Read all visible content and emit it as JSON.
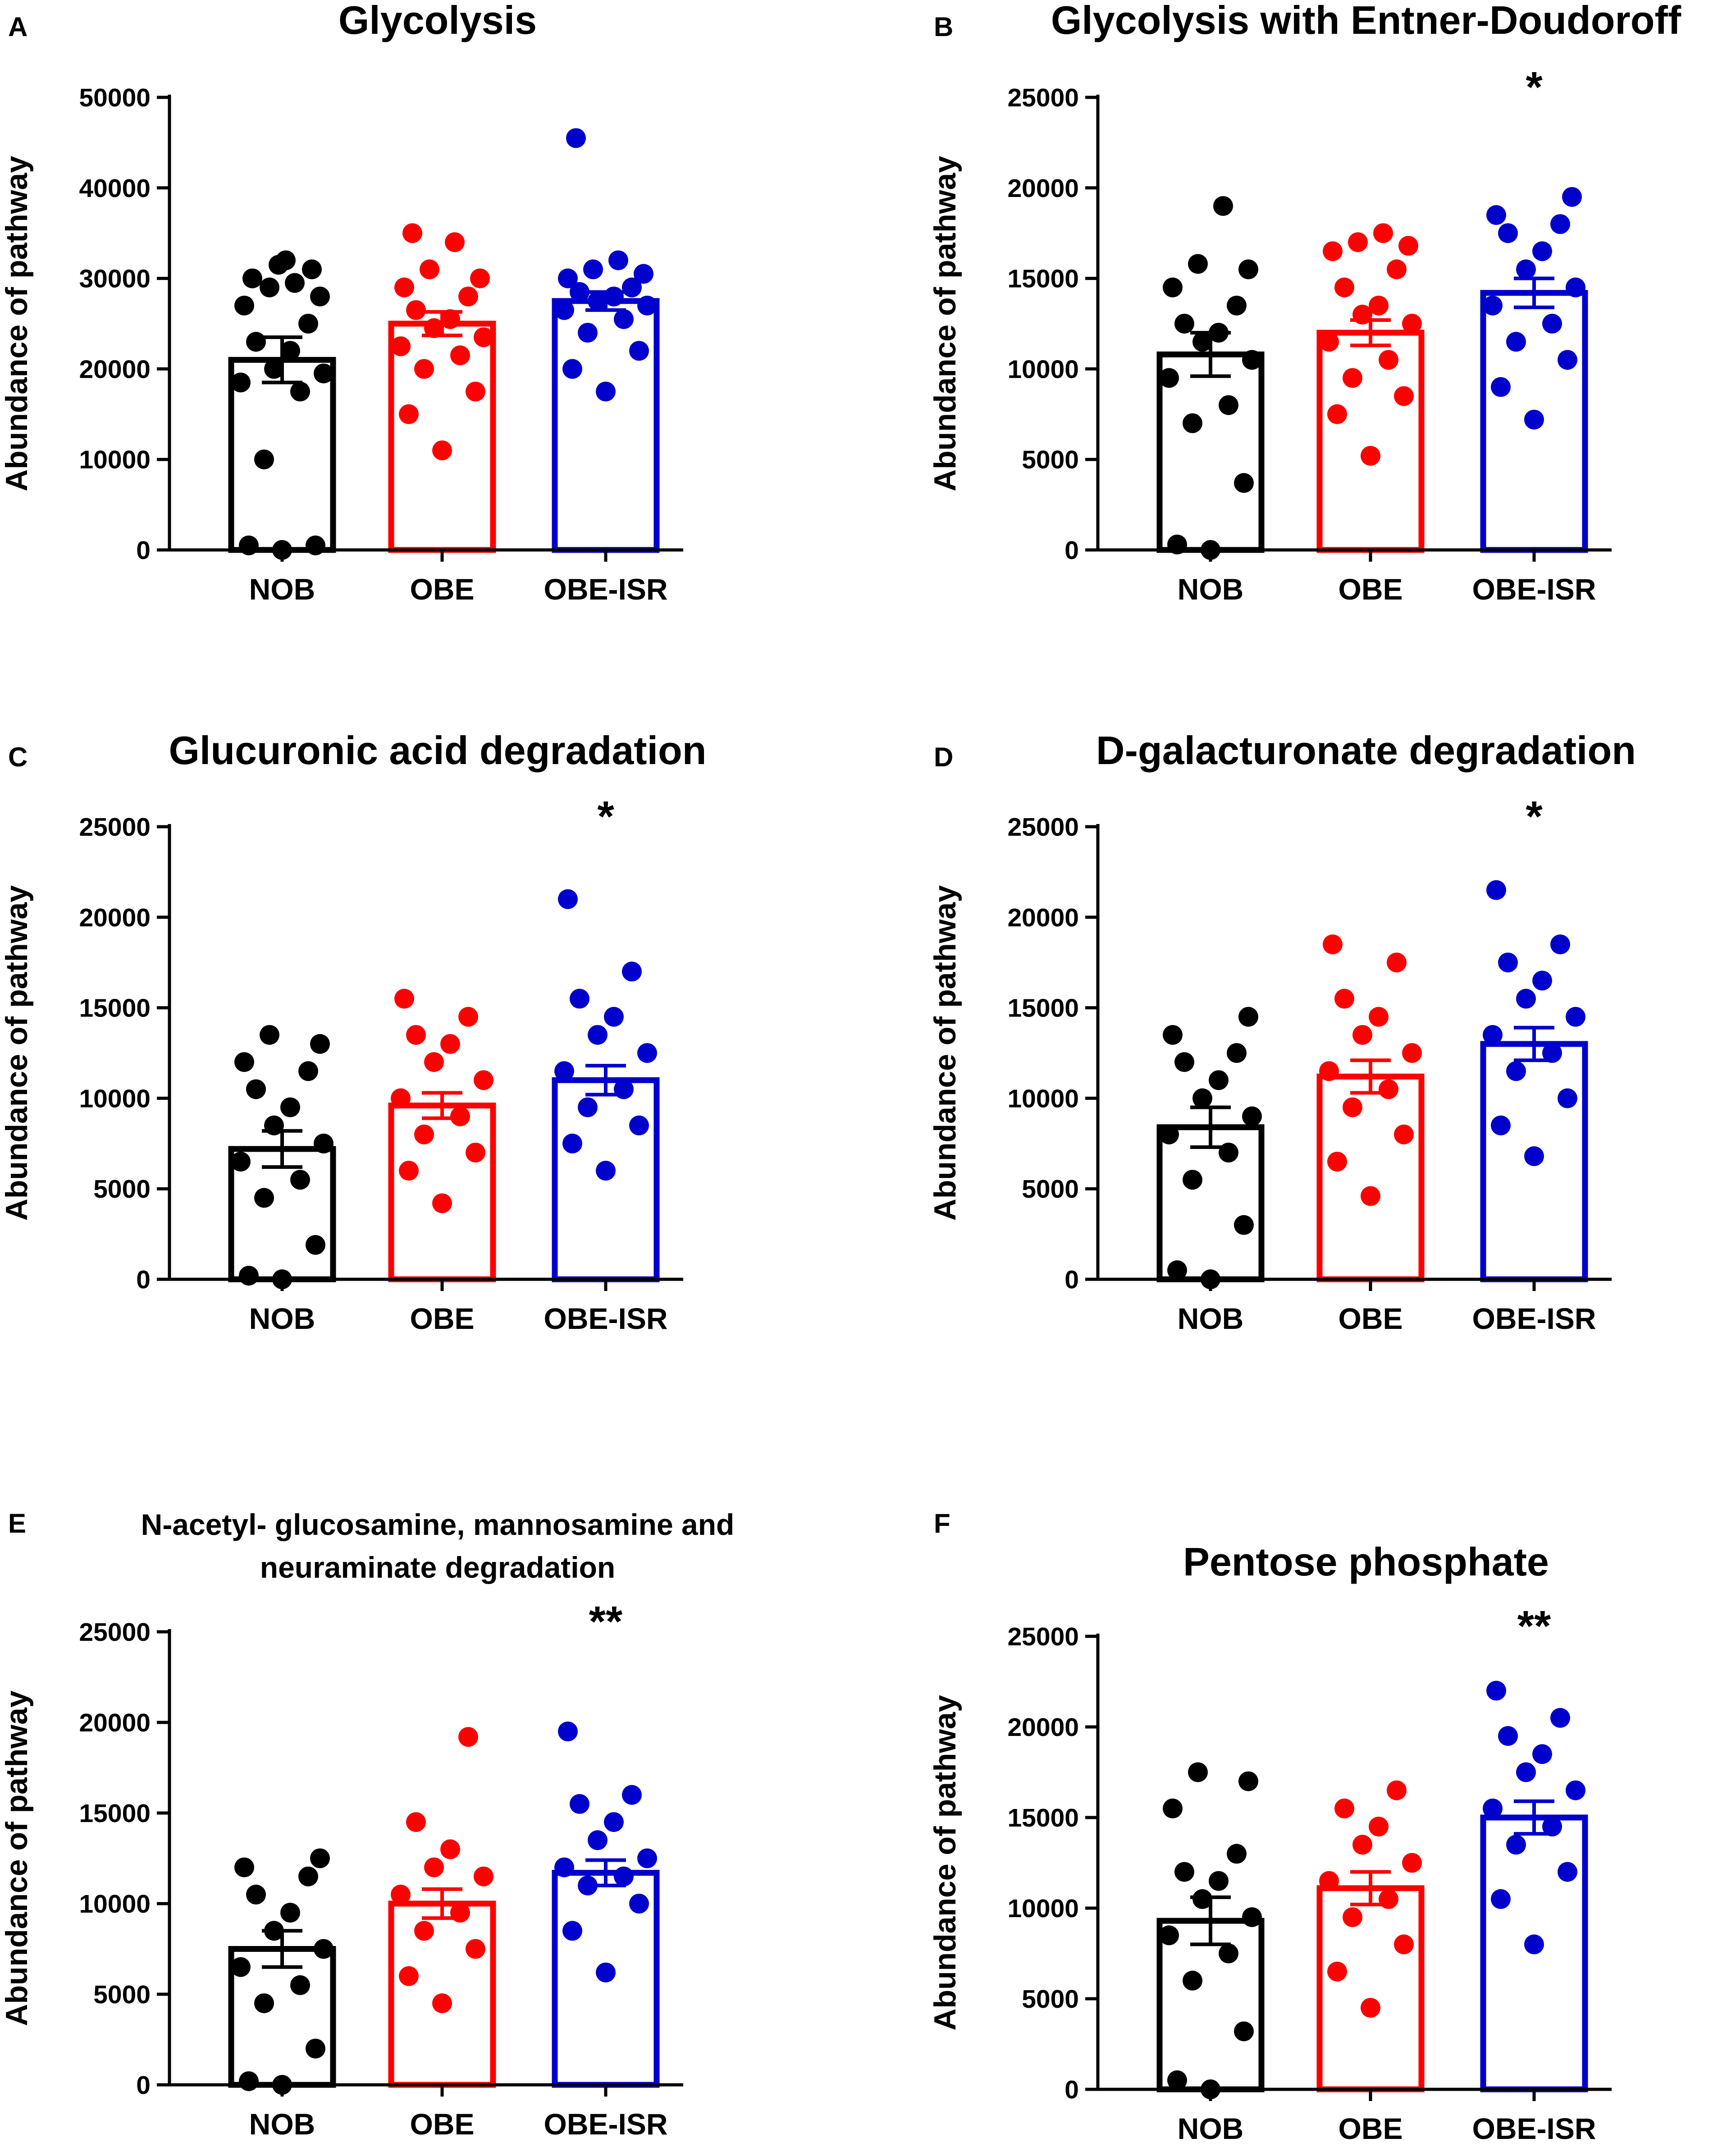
{
  "chart_data": [
    {
      "panel": "A",
      "type": "bar",
      "title": "Glycolysis",
      "title_lines": [
        "Glycolysis"
      ],
      "ylabel": "Abundance of  pathway",
      "xlabel": "",
      "ylim": [
        0,
        50000
      ],
      "yticks": [
        0,
        10000,
        20000,
        30000,
        40000,
        50000
      ],
      "categories": [
        "NOB",
        "OBE",
        "OBE-ISR"
      ],
      "colors": [
        "#000000",
        "#ff0000",
        "#0000cc"
      ],
      "means": [
        21000,
        25000,
        27500
      ],
      "sem": [
        2500,
        1300,
        1000
      ],
      "points": [
        [
          0,
          500,
          500,
          10000,
          17500,
          18500,
          19500,
          20000,
          22000,
          23000,
          25000,
          27000,
          28000,
          29000,
          29500,
          30000,
          31000,
          31500,
          32000
        ],
        [
          11000,
          15000,
          17500,
          20000,
          21500,
          22500,
          23500,
          24500,
          25500,
          26500,
          28000,
          29000,
          30000,
          31000,
          34000,
          35000
        ],
        [
          17500,
          20000,
          22000,
          24000,
          25500,
          26500,
          27000,
          27500,
          28000,
          28500,
          29000,
          30000,
          30500,
          31000,
          32000,
          45500
        ]
      ],
      "significance": ""
    },
    {
      "panel": "B",
      "type": "bar",
      "title": "Glycolysis with Entner-Doudoroff",
      "title_lines": [
        "Glycolysis with Entner-Doudoroff"
      ],
      "ylabel": "Abundance of  pathway",
      "xlabel": "",
      "ylim": [
        0,
        25000
      ],
      "yticks": [
        0,
        5000,
        10000,
        15000,
        20000,
        25000
      ],
      "categories": [
        "NOB",
        "OBE",
        "OBE-ISR"
      ],
      "colors": [
        "#000000",
        "#ff0000",
        "#0000cc"
      ],
      "means": [
        10800,
        12000,
        14200
      ],
      "sem": [
        1200,
        700,
        800
      ],
      "points": [
        [
          0,
          300,
          3700,
          7000,
          8000,
          9500,
          10500,
          11500,
          12000,
          12500,
          13500,
          14500,
          15500,
          15800,
          19000
        ],
        [
          5200,
          7500,
          8500,
          9500,
          10500,
          11500,
          12500,
          13000,
          13500,
          14500,
          15500,
          16500,
          16800,
          17000,
          17500
        ],
        [
          7200,
          9000,
          10500,
          11500,
          12500,
          13500,
          14500,
          15500,
          16500,
          17500,
          18000,
          18500,
          19500
        ]
      ],
      "significance": "*"
    },
    {
      "panel": "C",
      "type": "bar",
      "title": "Glucuronic acid degradation",
      "title_lines": [
        "Glucuronic acid degradation"
      ],
      "ylabel": "Abundance of  pathway",
      "xlabel": "",
      "ylim": [
        0,
        25000
      ],
      "yticks": [
        0,
        5000,
        10000,
        15000,
        20000,
        25000
      ],
      "categories": [
        "NOB",
        "OBE",
        "OBE-ISR"
      ],
      "colors": [
        "#000000",
        "#ff0000",
        "#0000cc"
      ],
      "means": [
        7200,
        9600,
        11000
      ],
      "sem": [
        1000,
        700,
        800
      ],
      "points": [
        [
          0,
          200,
          1900,
          4500,
          5500,
          6500,
          7500,
          8500,
          9500,
          10500,
          11500,
          12000,
          13000,
          13500
        ],
        [
          4200,
          6000,
          7000,
          8000,
          9000,
          10000,
          11000,
          12000,
          13000,
          13500,
          14500,
          15500
        ],
        [
          6000,
          7500,
          8500,
          9500,
          10500,
          11500,
          12500,
          13500,
          14500,
          15500,
          17000,
          21000
        ]
      ],
      "significance": "*"
    },
    {
      "panel": "D",
      "type": "bar",
      "title": "D-galacturonate degradation",
      "title_lines": [
        "D-galacturonate degradation"
      ],
      "ylabel": "Abundance of  pathway",
      "xlabel": "",
      "ylim": [
        0,
        25000
      ],
      "yticks": [
        0,
        5000,
        10000,
        15000,
        20000,
        25000
      ],
      "categories": [
        "NOB",
        "OBE",
        "OBE-ISR"
      ],
      "colors": [
        "#000000",
        "#ff0000",
        "#0000cc"
      ],
      "means": [
        8400,
        11200,
        13000
      ],
      "sem": [
        1100,
        900,
        900
      ],
      "points": [
        [
          0,
          500,
          3000,
          5500,
          7000,
          8000,
          9000,
          10000,
          11000,
          12000,
          12500,
          13500,
          14500
        ],
        [
          4600,
          6500,
          8000,
          9500,
          10500,
          11500,
          12500,
          13500,
          14500,
          15500,
          17500,
          18500
        ],
        [
          6800,
          8500,
          10000,
          11500,
          12500,
          13500,
          14500,
          15500,
          16500,
          17500,
          18500,
          21500
        ]
      ],
      "significance": "*"
    },
    {
      "panel": "E",
      "type": "bar",
      "title": "N-acetyl- glucosamine, mannosamine and neuraminate degradation",
      "title_lines": [
        "N-acetyl- glucosamine, mannosamine and",
        "neuraminate degradation"
      ],
      "ylabel": "Abundance of  pathway",
      "xlabel": "",
      "ylim": [
        0,
        25000
      ],
      "yticks": [
        0,
        5000,
        10000,
        15000,
        20000,
        25000
      ],
      "categories": [
        "NOB",
        "OBE",
        "OBE-ISR"
      ],
      "colors": [
        "#000000",
        "#ff0000",
        "#0000cc"
      ],
      "means": [
        7500,
        10000,
        11700
      ],
      "sem": [
        1000,
        800,
        700
      ],
      "points": [
        [
          0,
          200,
          2000,
          4500,
          5500,
          6500,
          7500,
          8500,
          9500,
          10500,
          11500,
          12000,
          12500
        ],
        [
          4500,
          6000,
          7500,
          8500,
          9500,
          10500,
          11500,
          12000,
          13000,
          14500,
          19200
        ],
        [
          6200,
          8500,
          10000,
          11000,
          11500,
          12000,
          12500,
          13500,
          14500,
          15500,
          16000,
          19500
        ]
      ],
      "significance": "**"
    },
    {
      "panel": "F",
      "type": "bar",
      "title": "Pentose phosphate",
      "title_lines": [
        "Pentose phosphate"
      ],
      "ylabel": "Abundance of  pathway",
      "xlabel": "",
      "ylim": [
        0,
        25000
      ],
      "yticks": [
        0,
        5000,
        10000,
        15000,
        20000,
        25000
      ],
      "categories": [
        "NOB",
        "OBE",
        "OBE-ISR"
      ],
      "colors": [
        "#000000",
        "#ff0000",
        "#0000cc"
      ],
      "means": [
        9300,
        11100,
        15000
      ],
      "sem": [
        1300,
        900,
        900
      ],
      "points": [
        [
          0,
          500,
          3200,
          6000,
          7500,
          8500,
          9500,
          10500,
          11500,
          12000,
          13000,
          15500,
          17000,
          17500
        ],
        [
          4500,
          6500,
          8000,
          9500,
          10500,
          11500,
          12500,
          13500,
          14500,
          15500,
          16500
        ],
        [
          8000,
          10500,
          12000,
          13500,
          14500,
          15500,
          16500,
          17500,
          18500,
          19500,
          20500,
          22000
        ]
      ],
      "significance": "**"
    }
  ]
}
